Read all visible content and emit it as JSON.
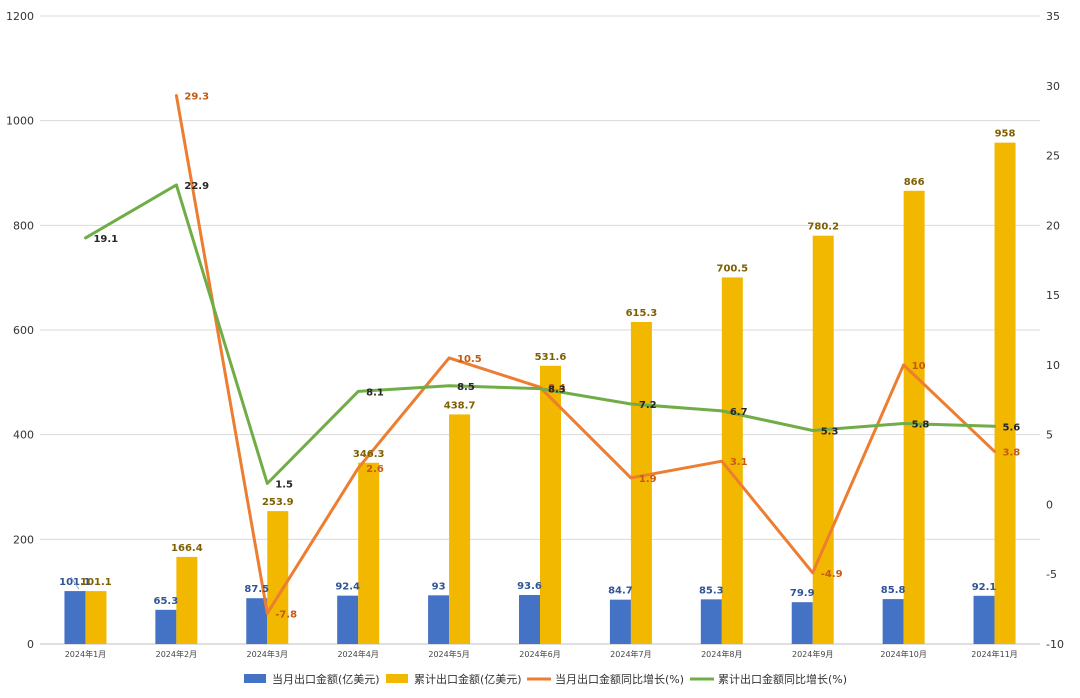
{
  "chart_data": {
    "type": "bar",
    "categories": [
      "2024年1月",
      "2024年2月",
      "2024年3月",
      "2024年4月",
      "2024年5月",
      "2024年6月",
      "2024年7月",
      "2024年8月",
      "2024年9月",
      "2024年10月",
      "2024年11月"
    ],
    "series": [
      {
        "name": "当月出口金额(亿美元)",
        "type": "bar",
        "axis": "left",
        "color": "#4472C4",
        "label_color": "#2F5597",
        "values": [
          101.1,
          65.3,
          87.5,
          92.4,
          93,
          93.6,
          84.7,
          85.3,
          79.9,
          85.8,
          92.1
        ]
      },
      {
        "name": "累计出口金额(亿美元)",
        "type": "bar",
        "axis": "left",
        "color": "#F2B800",
        "label_color": "#7F6000",
        "values": [
          101.1,
          166.4,
          253.9,
          346.3,
          438.7,
          531.6,
          615.3,
          700.5,
          780.2,
          866,
          958
        ]
      },
      {
        "name": "当月出口金额同比增长(%)",
        "type": "line",
        "axis": "right",
        "color": "#ED7D31",
        "label_color": "#C55A11",
        "values": [
          null,
          29.3,
          -7.8,
          2.6,
          10.5,
          8.4,
          1.9,
          3.1,
          -4.9,
          10,
          3.8
        ]
      },
      {
        "name": "累计出口金额同比增长(%)",
        "type": "line",
        "axis": "right",
        "color": "#70AD47",
        "label_color": "#262626",
        "values": [
          19.1,
          22.9,
          1.5,
          8.1,
          8.5,
          8.3,
          7.2,
          6.7,
          5.3,
          5.8,
          5.6
        ]
      }
    ],
    "y_left": {
      "min": 0,
      "max": 1200,
      "ticks": [
        "0",
        "200",
        "400",
        "600",
        "800",
        "1000",
        "1200"
      ]
    },
    "y_right": {
      "min": -10,
      "max": 35,
      "ticks": [
        "-10",
        "-5",
        "0",
        "5",
        "10",
        "15",
        "20",
        "25",
        "30",
        "35"
      ]
    },
    "grid": true,
    "legend_position": "bottom"
  }
}
